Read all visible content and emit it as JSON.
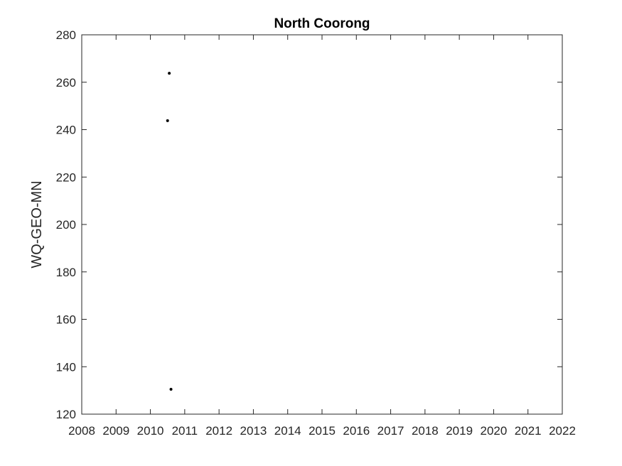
{
  "chart_data": {
    "type": "scatter",
    "title": "North Coorong",
    "xlabel": "",
    "ylabel": "WQ-GEO-MN",
    "xlim": [
      2008,
      2022
    ],
    "ylim": [
      120,
      280
    ],
    "xticks": [
      2008,
      2009,
      2010,
      2011,
      2012,
      2013,
      2014,
      2015,
      2016,
      2017,
      2018,
      2019,
      2020,
      2021,
      2022
    ],
    "yticks": [
      120,
      140,
      160,
      180,
      200,
      220,
      240,
      260,
      280
    ],
    "grid": false,
    "marker_color": "#000000",
    "series": [
      {
        "points": [
          {
            "x": 2010.5,
            "y": 243.8
          },
          {
            "x": 2010.55,
            "y": 263.8
          },
          {
            "x": 2010.6,
            "y": 130.5
          }
        ]
      }
    ]
  }
}
